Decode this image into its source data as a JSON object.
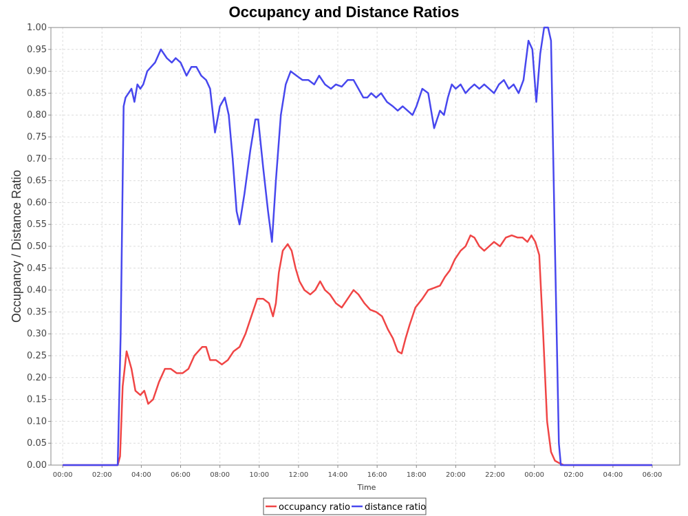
{
  "chart_data": {
    "type": "line",
    "title": "Occupancy and Distance Ratios",
    "xlabel": "Time",
    "ylabel": "Occupancy / Distance Ratio",
    "ylim": [
      0,
      1
    ],
    "xlim": [
      -0.6,
      31.4
    ],
    "grid": true,
    "legend_position": "bottom-center",
    "y_ticks": [
      "0.00",
      "0.05",
      "0.10",
      "0.15",
      "0.20",
      "0.25",
      "0.30",
      "0.35",
      "0.40",
      "0.45",
      "0.50",
      "0.55",
      "0.60",
      "0.65",
      "0.70",
      "0.75",
      "0.80",
      "0.85",
      "0.90",
      "0.95",
      "1.00"
    ],
    "x_ticks": [
      "00:00",
      "02:00",
      "04:00",
      "06:00",
      "08:00",
      "10:00",
      "12:00",
      "14:00",
      "16:00",
      "18:00",
      "20:00",
      "22:00",
      "00:00",
      "02:00",
      "04:00",
      "06:00",
      "08:00",
      "10:00",
      "12:00",
      "14:00",
      "16:00",
      "18:00",
      "20:00",
      "22:00",
      "00:00",
      "02:00",
      "04:00",
      "06:00"
    ],
    "x_tick_hours": [
      0,
      2,
      4,
      6,
      8,
      10,
      12,
      14,
      16,
      18,
      20,
      22,
      24,
      26,
      28,
      30,
      32,
      34,
      36,
      38,
      40,
      42,
      44,
      46,
      48,
      50,
      52,
      54
    ],
    "series": [
      {
        "name": "occupancy ratio",
        "color": "#f04545",
        "x": [
          0,
          2.8,
          2.92,
          3.05,
          3.25,
          3.5,
          3.7,
          3.95,
          4.15,
          4.35,
          4.6,
          4.9,
          5.2,
          5.5,
          5.8,
          6.1,
          6.4,
          6.7,
          6.9,
          7.1,
          7.3,
          7.5,
          7.8,
          8.1,
          8.4,
          8.7,
          9.0,
          9.3,
          9.6,
          9.9,
          10.2,
          10.5,
          10.7,
          10.85,
          11.0,
          11.2,
          11.45,
          11.65,
          11.85,
          12.05,
          12.3,
          12.6,
          12.85,
          13.1,
          13.35,
          13.6,
          13.9,
          14.2,
          14.5,
          14.8,
          15.05,
          15.35,
          15.65,
          15.95,
          16.25,
          16.55,
          16.8,
          17.05,
          17.25,
          17.45,
          17.65,
          17.95,
          18.3,
          18.6,
          18.9,
          19.2,
          19.45,
          19.7,
          19.95,
          20.25,
          20.5,
          20.75,
          20.95,
          21.2,
          21.45,
          21.7,
          21.95,
          22.25,
          22.55,
          22.85,
          23.15,
          23.4,
          23.65,
          23.85,
          24.05,
          24.25,
          24.45,
          24.65,
          24.85,
          25.05,
          25.25,
          25.5,
          26.0,
          27.0,
          28.0,
          29.0,
          30.0
        ],
        "values": [
          0,
          0,
          0.02,
          0.18,
          0.26,
          0.22,
          0.17,
          0.16,
          0.17,
          0.14,
          0.15,
          0.19,
          0.22,
          0.22,
          0.21,
          0.21,
          0.22,
          0.25,
          0.26,
          0.27,
          0.27,
          0.24,
          0.24,
          0.23,
          0.24,
          0.26,
          0.27,
          0.3,
          0.34,
          0.38,
          0.38,
          0.37,
          0.34,
          0.37,
          0.44,
          0.49,
          0.505,
          0.49,
          0.45,
          0.42,
          0.4,
          0.39,
          0.4,
          0.42,
          0.4,
          0.39,
          0.37,
          0.36,
          0.38,
          0.4,
          0.39,
          0.37,
          0.355,
          0.35,
          0.34,
          0.31,
          0.29,
          0.26,
          0.255,
          0.29,
          0.32,
          0.36,
          0.38,
          0.4,
          0.405,
          0.41,
          0.43,
          0.445,
          0.47,
          0.49,
          0.5,
          0.525,
          0.52,
          0.5,
          0.49,
          0.5,
          0.51,
          0.5,
          0.52,
          0.525,
          0.52,
          0.52,
          0.51,
          0.525,
          0.51,
          0.48,
          0.3,
          0.1,
          0.03,
          0.01,
          0.005,
          0,
          0,
          0,
          0,
          0,
          0
        ]
      },
      {
        "name": "distance ratio",
        "color": "#4747ee",
        "x": [
          0,
          2.8,
          2.95,
          3.1,
          3.2,
          3.35,
          3.5,
          3.65,
          3.8,
          3.95,
          4.1,
          4.3,
          4.5,
          4.7,
          5.0,
          5.3,
          5.55,
          5.75,
          6.0,
          6.3,
          6.55,
          6.8,
          7.05,
          7.3,
          7.5,
          7.75,
          8.0,
          8.25,
          8.45,
          8.65,
          8.85,
          9.0,
          9.25,
          9.55,
          9.8,
          9.95,
          10.2,
          10.45,
          10.65,
          10.85,
          11.1,
          11.35,
          11.6,
          11.9,
          12.2,
          12.5,
          12.8,
          13.05,
          13.35,
          13.65,
          13.9,
          14.2,
          14.5,
          14.8,
          15.05,
          15.3,
          15.5,
          15.7,
          15.95,
          16.2,
          16.5,
          16.8,
          17.05,
          17.3,
          17.55,
          17.8,
          18.0,
          18.3,
          18.6,
          18.9,
          19.2,
          19.4,
          19.6,
          19.8,
          20.0,
          20.25,
          20.5,
          20.7,
          20.95,
          21.2,
          21.45,
          21.7,
          21.95,
          22.2,
          22.45,
          22.7,
          22.95,
          23.2,
          23.45,
          23.7,
          23.9,
          24.1,
          24.3,
          24.5,
          24.7,
          24.85,
          25.05,
          25.25,
          25.35,
          26.0,
          27.0,
          28.0,
          29.0,
          30.0
        ],
        "values": [
          0,
          0,
          0.3,
          0.82,
          0.84,
          0.85,
          0.86,
          0.83,
          0.87,
          0.86,
          0.87,
          0.9,
          0.91,
          0.92,
          0.95,
          0.93,
          0.92,
          0.93,
          0.92,
          0.89,
          0.91,
          0.91,
          0.89,
          0.88,
          0.86,
          0.76,
          0.82,
          0.84,
          0.8,
          0.7,
          0.58,
          0.55,
          0.62,
          0.72,
          0.79,
          0.79,
          0.68,
          0.58,
          0.51,
          0.65,
          0.8,
          0.87,
          0.9,
          0.89,
          0.88,
          0.88,
          0.87,
          0.89,
          0.87,
          0.86,
          0.87,
          0.865,
          0.88,
          0.88,
          0.86,
          0.84,
          0.84,
          0.85,
          0.84,
          0.85,
          0.83,
          0.82,
          0.81,
          0.82,
          0.81,
          0.8,
          0.82,
          0.86,
          0.85,
          0.77,
          0.81,
          0.8,
          0.84,
          0.87,
          0.86,
          0.87,
          0.85,
          0.86,
          0.87,
          0.86,
          0.87,
          0.86,
          0.85,
          0.87,
          0.88,
          0.86,
          0.87,
          0.85,
          0.88,
          0.97,
          0.95,
          0.83,
          0.94,
          1.0,
          1.0,
          0.97,
          0.5,
          0.05,
          0,
          0,
          0,
          0,
          0,
          0
        ]
      }
    ]
  }
}
